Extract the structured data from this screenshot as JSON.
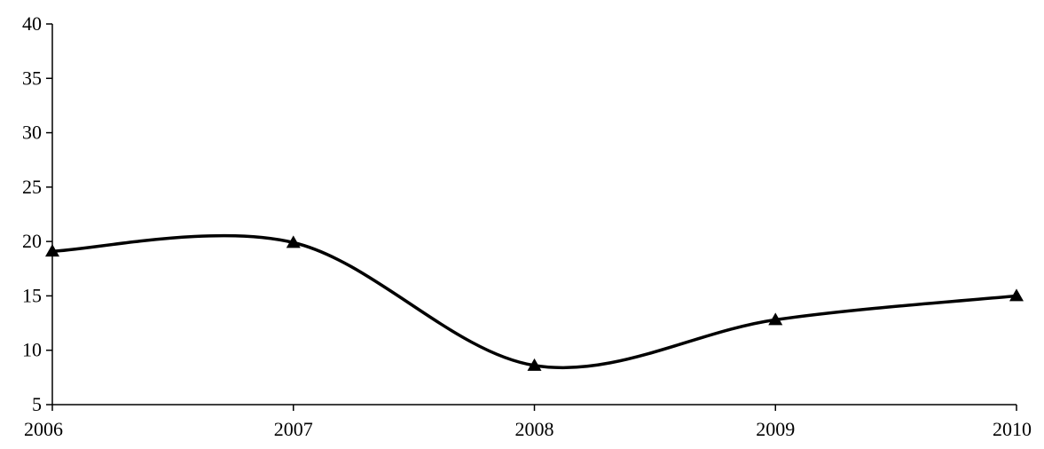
{
  "chart_data": {
    "type": "line",
    "title": "",
    "xlabel": "",
    "ylabel": "",
    "categories": [
      "2006",
      "2007",
      "2008",
      "2009",
      "2010"
    ],
    "series": [
      {
        "values": [
          19.1,
          19.9,
          8.6,
          12.8,
          15.0
        ],
        "color": "#000000",
        "marker": "triangle",
        "smooth": true
      }
    ],
    "ylim": [
      5,
      40
    ],
    "yticks": [
      "5",
      "10",
      "15",
      "20",
      "25",
      "30",
      "35",
      "40"
    ],
    "grid": false,
    "legend": "none"
  }
}
